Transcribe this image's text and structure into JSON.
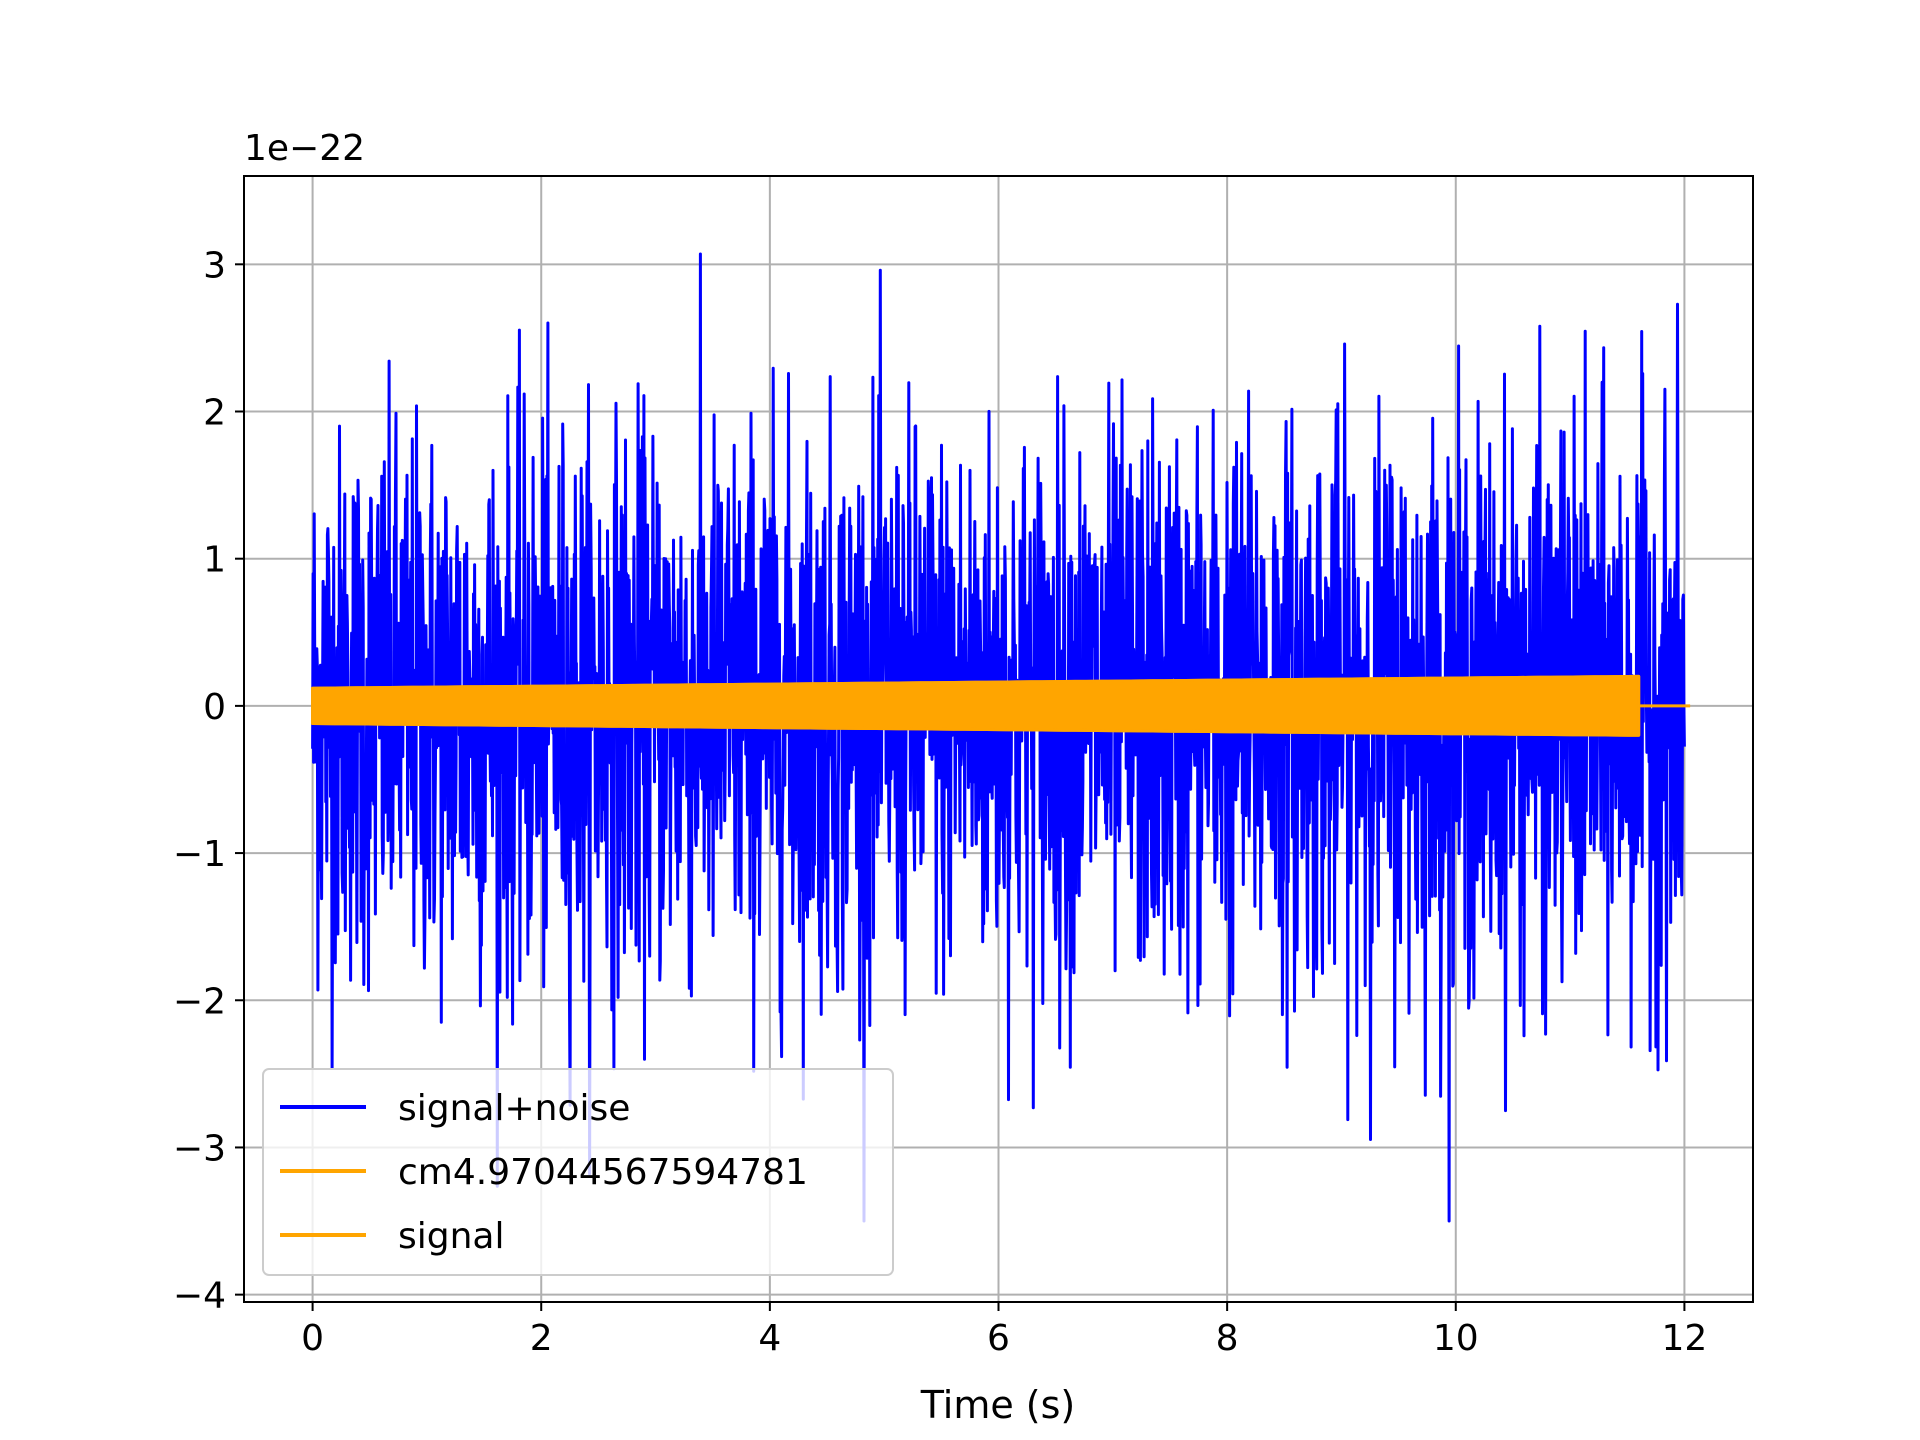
{
  "chart_data": {
    "type": "line",
    "title": "",
    "xlabel": "Time (s)",
    "ylabel": "",
    "y_offset_label": "1e−22",
    "xlim": [
      -0.6,
      12.6
    ],
    "ylim": [
      -4.05,
      3.6
    ],
    "x_ticks": [
      0,
      2,
      4,
      6,
      8,
      10,
      12
    ],
    "y_ticks": [
      -4,
      -3,
      -2,
      -1,
      0,
      1,
      2,
      3
    ],
    "x_tick_labels": [
      "0",
      "2",
      "4",
      "6",
      "8",
      "10",
      "12"
    ],
    "y_tick_labels": [
      "−4",
      "−3",
      "−2",
      "−1",
      "0",
      "1",
      "2",
      "3"
    ],
    "grid": true,
    "legend_position": "lower-left",
    "series": [
      {
        "name": "signal+noise",
        "color": "#0000ff",
        "kind": "noise",
        "x_range": [
          0,
          12
        ],
        "typical_band": [
          -1.5,
          1.5
        ],
        "peak_max": 3.25,
        "peak_min": -3.5
      },
      {
        "name": "cm4.97044567594781",
        "color": "#ffa500",
        "kind": "chirp",
        "x_range": [
          0,
          11.6
        ],
        "amplitude_start": 0.12,
        "amplitude_end": 0.2
      },
      {
        "name": "signal",
        "color": "#ffa500",
        "kind": "chirp",
        "x_range": [
          0,
          11.6
        ],
        "amplitude_start": 0.12,
        "amplitude_end": 0.2,
        "tail_x_range": [
          11.6,
          12.05
        ]
      }
    ]
  }
}
